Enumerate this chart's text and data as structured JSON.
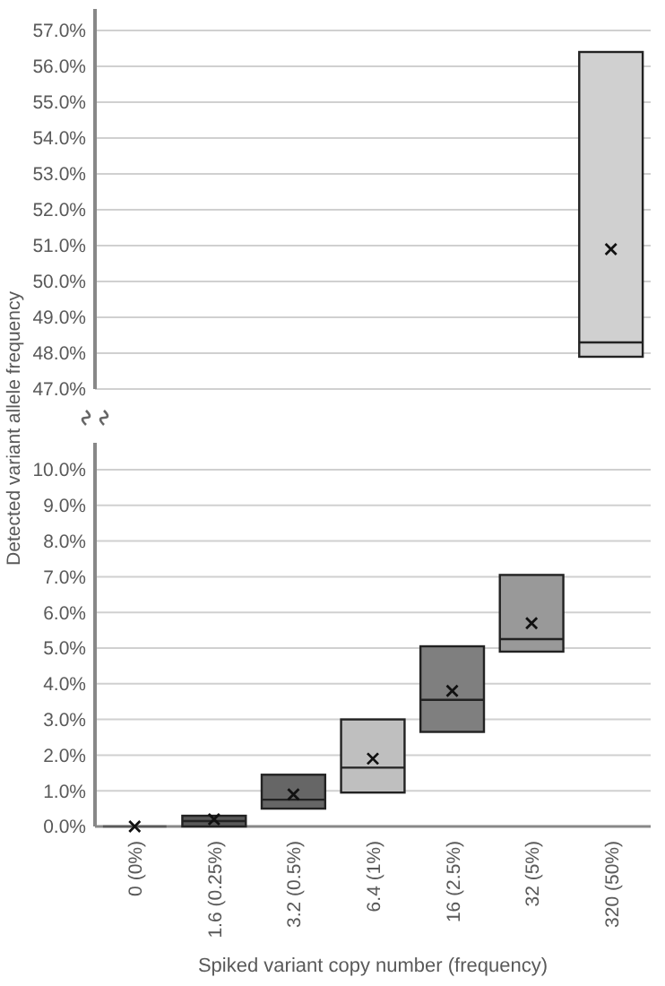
{
  "chart_data": [
    {
      "type": "box",
      "ylabel": "Detected variant allele frequency",
      "boxes": [
        null,
        null,
        null,
        null,
        null,
        null,
        {
          "low": 47.9,
          "q1": 47.9,
          "median": 48.3,
          "q3": 56.4,
          "high": 56.4,
          "mean": 50.9
        }
      ],
      "colors": [
        null,
        null,
        null,
        null,
        null,
        null,
        "#d0d0d0"
      ],
      "ylim": [
        47,
        57
      ],
      "yticks": [
        {
          "value": 47,
          "label": "47.0%"
        },
        {
          "value": 48,
          "label": "48.0%"
        },
        {
          "value": 49,
          "label": "49.0%"
        },
        {
          "value": 50,
          "label": "50.0%"
        },
        {
          "value": 51,
          "label": "51.0%"
        },
        {
          "value": 52,
          "label": "52.0%"
        },
        {
          "value": 53,
          "label": "53.0%"
        },
        {
          "value": 54,
          "label": "54.0%"
        },
        {
          "value": 55,
          "label": "55.0%"
        },
        {
          "value": 56,
          "label": "56.0%"
        },
        {
          "value": 57,
          "label": "57.0%"
        }
      ],
      "grid": "y",
      "tick_labels": "y"
    },
    {
      "type": "box",
      "xlabel": "Spiked variant copy number (frequency)",
      "categories": [
        "0 (0%)",
        "1.6 (0.25%)",
        "3.2 (0.5%)",
        "6.4 (1%)",
        "16 (2.5%)",
        "32 (5%)",
        "320 (50%)"
      ],
      "boxes": [
        {
          "low": 0,
          "q1": 0,
          "median": 0,
          "q3": 0,
          "high": 0,
          "mean": 0
        },
        {
          "low": 0,
          "q1": 0,
          "median": 0.15,
          "q3": 0.3,
          "high": 0.3,
          "mean": 0.2
        },
        {
          "low": 0.5,
          "q1": 0.5,
          "median": 0.75,
          "q3": 1.45,
          "high": 1.45,
          "mean": 0.9
        },
        {
          "low": 0.95,
          "q1": 0.95,
          "median": 1.65,
          "q3": 3,
          "high": 3,
          "mean": 1.9
        },
        {
          "low": 2.65,
          "q1": 2.65,
          "median": 3.55,
          "q3": 5.05,
          "high": 5.05,
          "mean": 3.8
        },
        {
          "low": 4.9,
          "q1": 4.9,
          "median": 5.25,
          "q3": 7.05,
          "high": 7.05,
          "mean": 5.7
        },
        null
      ],
      "colors": [
        "#595959",
        "#595959",
        "#666666",
        "#bfbfbf",
        "#7f7f7f",
        "#999999",
        null
      ],
      "ylim": [
        0,
        10
      ],
      "yticks": [
        {
          "value": 0,
          "label": "0.0%"
        },
        {
          "value": 1,
          "label": "1.0%"
        },
        {
          "value": 2,
          "label": "2.0%"
        },
        {
          "value": 3,
          "label": "3.0%"
        },
        {
          "value": 4,
          "label": "4.0%"
        },
        {
          "value": 5,
          "label": "5.0%"
        },
        {
          "value": 6,
          "label": "6.0%"
        },
        {
          "value": 7,
          "label": "7.0%"
        },
        {
          "value": 8,
          "label": "8.0%"
        },
        {
          "value": 9,
          "label": "9.0%"
        },
        {
          "value": 10,
          "label": "10.0%"
        }
      ],
      "grid": "y"
    }
  ]
}
